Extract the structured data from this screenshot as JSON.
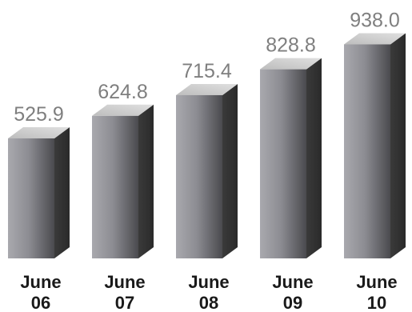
{
  "chart_data": {
    "type": "bar",
    "categories": [
      {
        "line1": "June",
        "line2": "06"
      },
      {
        "line1": "June",
        "line2": "07"
      },
      {
        "line1": "June",
        "line2": "08"
      },
      {
        "line1": "June",
        "line2": "09"
      },
      {
        "line1": "June",
        "line2": "10"
      }
    ],
    "values": [
      525.9,
      624.8,
      715.4,
      828.8,
      938.0
    ],
    "value_labels": [
      "525.9",
      "624.8",
      "715.4",
      "828.8",
      "938.0"
    ],
    "title": "",
    "xlabel": "",
    "ylabel": "",
    "grid": false,
    "legend": "none",
    "colors": {
      "front_light": "#a9a9ae",
      "front_dark": "#4a4a4e",
      "side": "#3a3a3a",
      "top": "#d0d0d0",
      "value_text": "#7f7f7f",
      "category_text": "#1a1a1a"
    }
  }
}
